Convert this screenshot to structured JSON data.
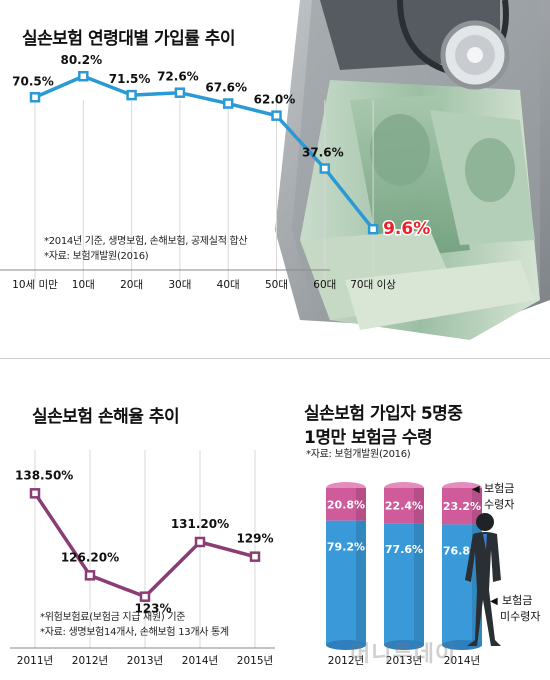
{
  "chart_data": [
    {
      "type": "line",
      "title": "실손보험 연령대별 가입률 추이",
      "categories": [
        "10세 미만",
        "10대",
        "20대",
        "30대",
        "40대",
        "50대",
        "60대",
        "70대 이상"
      ],
      "values": [
        70.5,
        80.2,
        71.5,
        72.6,
        67.6,
        62.0,
        37.6,
        9.6
      ],
      "labels": [
        "70.5%",
        "80.2%",
        "71.5%",
        "72.6%",
        "67.6%",
        "62.0%",
        "37.6%",
        "9.6%"
      ],
      "highlight_index": 7,
      "ylim": [
        0,
        90
      ],
      "notes": [
        "*2014년 기준, 생명보험, 손해보험, 공제실적 합산",
        "*자료: 보험개발원(2016)"
      ],
      "colors": {
        "line": "#2a9ad6",
        "highlight": "#e8232a"
      }
    },
    {
      "type": "line",
      "title": "실손보험 손해율 추이",
      "categories": [
        "2011년",
        "2012년",
        "2013년",
        "2014년",
        "2015년"
      ],
      "values": [
        138.5,
        126.2,
        123,
        131.2,
        129
      ],
      "labels": [
        "138.50%",
        "126.20%",
        "123%",
        "131.20%",
        "129%"
      ],
      "ylim": [
        118,
        142
      ],
      "notes": [
        "*위험보험료(보험금 지급 재원) 기준",
        "*자료: 생명보험14개사, 손해보험 13개사 통계"
      ],
      "colors": {
        "line": "#8a3c74"
      }
    },
    {
      "type": "bar",
      "stacked": true,
      "title": [
        "실손보험 가입자 5명중",
        "1명만 보험금 수령"
      ],
      "source": "*자료: 보험개발원(2016)",
      "categories": [
        "2012년",
        "2013년",
        "2014년"
      ],
      "series": [
        {
          "name": "보험금 수령자",
          "values": [
            20.8,
            22.4,
            23.2
          ],
          "labels": [
            "20.8%",
            "22.4%",
            "23.2%"
          ]
        },
        {
          "name": "보험금 미수령자",
          "values": [
            79.2,
            77.6,
            76.8
          ],
          "labels": [
            "79.2%",
            "77.6%",
            "76.8%"
          ]
        }
      ],
      "legend_labels": {
        "received": [
          "보험금",
          "수령자"
        ],
        "not_received": [
          "보험금",
          "미수령자"
        ]
      },
      "colors": {
        "received": "#d05b9b",
        "not_received": "#3a9ad9"
      }
    }
  ],
  "watermark": "머니투데이"
}
